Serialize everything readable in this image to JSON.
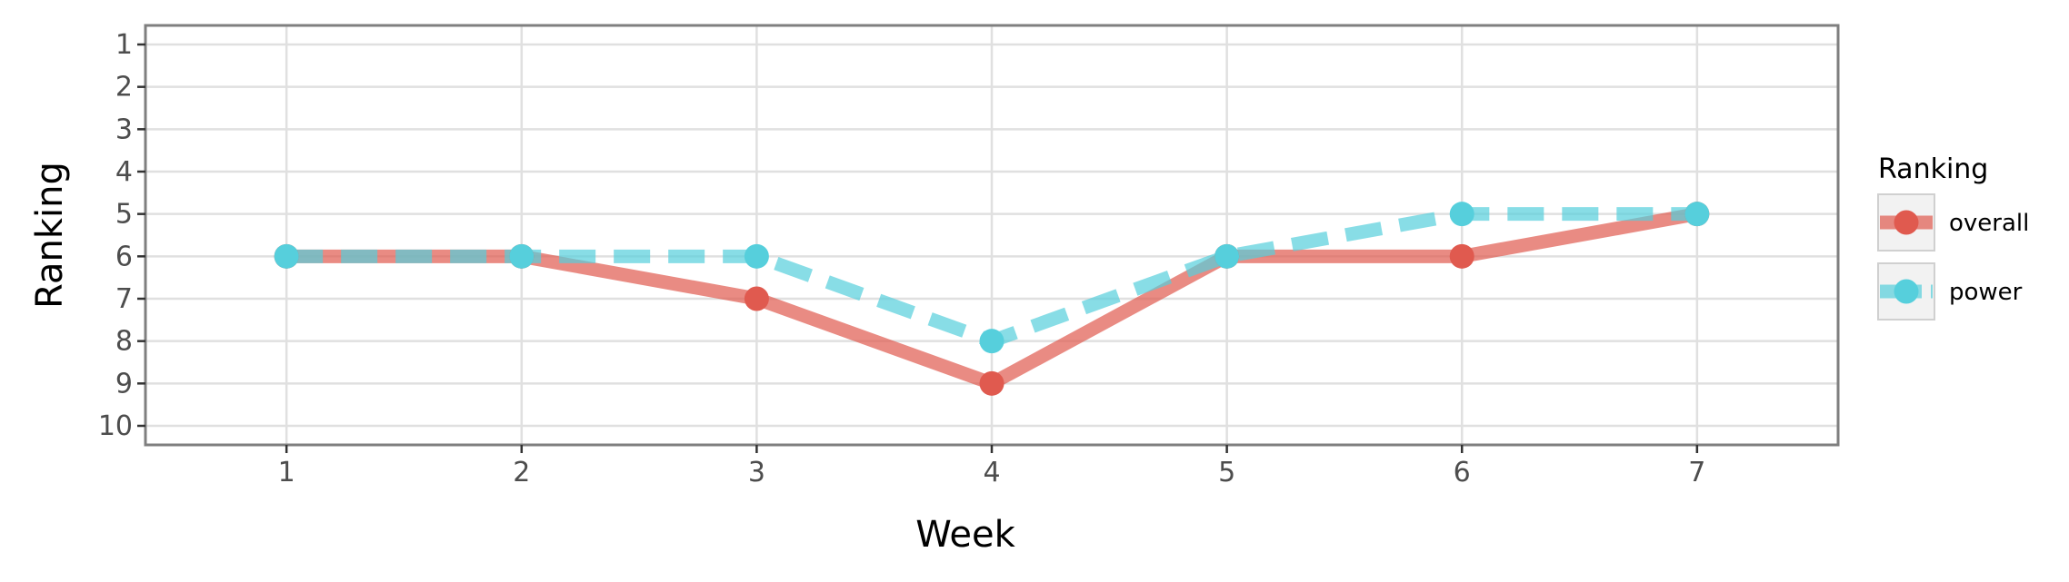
{
  "chart_data": {
    "type": "line",
    "xlabel": "Week",
    "ylabel": "Ranking",
    "x": [
      1,
      2,
      3,
      4,
      5,
      6,
      7
    ],
    "x_ticks": [
      "1",
      "2",
      "3",
      "4",
      "5",
      "6",
      "7"
    ],
    "y_ticks": [
      "1",
      "2",
      "3",
      "4",
      "5",
      "6",
      "7",
      "8",
      "9",
      "10"
    ],
    "xlim": [
      0.4,
      7.6
    ],
    "ylim": [
      0.55,
      10.45
    ],
    "y_reversed": true,
    "grid": true,
    "legend": {
      "title": "Ranking",
      "position": "right"
    },
    "series": [
      {
        "name": "overall",
        "values": [
          6,
          6,
          7,
          9,
          6,
          6,
          5
        ],
        "color": "#e05a4f",
        "line_style": "solid"
      },
      {
        "name": "power",
        "values": [
          6,
          6,
          6,
          8,
          6,
          5,
          5
        ],
        "color": "#56cfdc",
        "line_style": "dashed"
      }
    ]
  }
}
